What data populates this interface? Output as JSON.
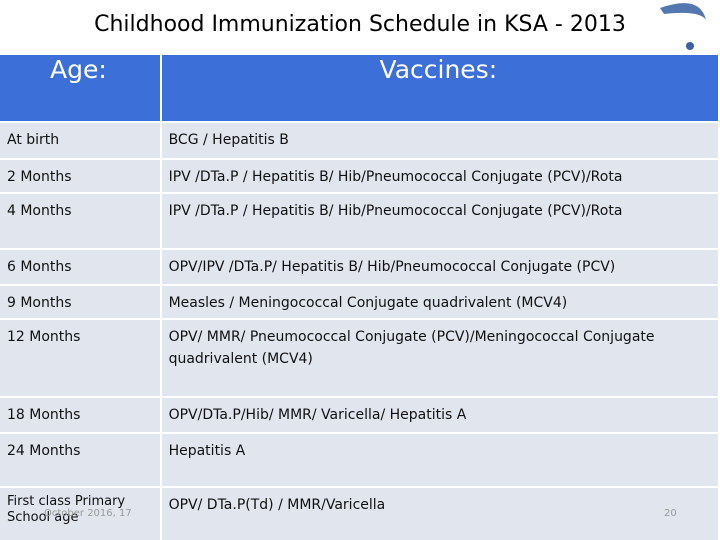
{
  "header": {
    "title": "Childhood Immunization Schedule in KSA - 2013"
  },
  "table": {
    "columns": [
      "Age:",
      "Vaccines:"
    ],
    "rows": [
      [
        "At birth",
        "BCG / Hepatitis B"
      ],
      [
        "2 Months",
        "IPV /DTa.P / Hepatitis B/ Hib/Pneumococcal Conjugate (PCV)/Rota"
      ],
      [
        "4 Months",
        "IPV /DTa.P / Hepatitis B/ Hib/Pneumococcal Conjugate (PCV)/Rota"
      ],
      [
        "6 Months",
        "OPV/IPV /DTa.P/ Hepatitis B/ Hib/Pneumococcal Conjugate (PCV)"
      ],
      [
        "9 Months",
        "Measles / Meningococcal Conjugate quadrivalent (MCV4)"
      ],
      [
        "12 Months",
        "OPV/ MMR/ Pneumococcal Conjugate (PCV)/Meningococcal Conjugate quadrivalent (MCV4)"
      ],
      [
        "18 Months",
        "OPV/DTa.P/Hib/  MMR/ Varicella/ Hepatitis A"
      ],
      [
        "24 Months",
        "Hepatitis A"
      ],
      [
        "First class Primary School age",
        "OPV/ DTa.P(Td) / MMR/Varicella"
      ]
    ]
  },
  "footer": {
    "date": "October 2016, 17",
    "page": "20"
  }
}
